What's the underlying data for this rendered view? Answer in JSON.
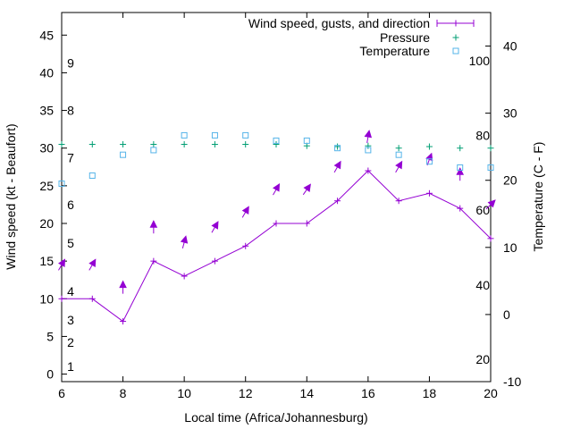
{
  "chart_data": {
    "type": "line",
    "title": "",
    "xlabel": "Local time (Africa/Johannesburg)",
    "ylabel": "Wind speed (kt - Beaufort)",
    "y2label": "Temperature (C - F)",
    "xlim": [
      6,
      20
    ],
    "ylim": [
      -1,
      48
    ],
    "y2lim": [
      -10,
      45
    ],
    "x_ticks": [
      6,
      8,
      10,
      12,
      14,
      16,
      18,
      20
    ],
    "y_ticks": [
      0,
      5,
      10,
      15,
      20,
      25,
      30,
      35,
      40,
      45
    ],
    "y2_ticks": [
      -10,
      0,
      10,
      20,
      30,
      40
    ],
    "beaufort_labels": [
      {
        "text": "1",
        "y": 1
      },
      {
        "text": "2",
        "y": 4.2
      },
      {
        "text": "3",
        "y": 7.2
      },
      {
        "text": "4",
        "y": 11
      },
      {
        "text": "5",
        "y": 17.4
      },
      {
        "text": "6",
        "y": 22.5
      },
      {
        "text": "7",
        "y": 28.7
      },
      {
        "text": "8",
        "y": 35
      },
      {
        "text": "9",
        "y": 41.3
      }
    ],
    "fahrenheit_labels": [
      {
        "text": "20",
        "y2": -6.7
      },
      {
        "text": "40",
        "y2": 4.4
      },
      {
        "text": "60",
        "y2": 15.6
      },
      {
        "text": "80",
        "y2": 26.7
      },
      {
        "text": "100",
        "y2": 37.8
      }
    ],
    "legend": [
      {
        "label": "Wind speed, gusts, and direction",
        "marker": "line-plus",
        "color": "#9400d3"
      },
      {
        "label": "Pressure",
        "marker": "plus",
        "color": "#009e73"
      },
      {
        "label": "Temperature",
        "marker": "square",
        "color": "#56b4e9"
      }
    ],
    "series": [
      {
        "name": "Wind speed, gusts, and direction",
        "color": "#9400d3",
        "x": [
          6,
          7,
          8,
          9,
          10,
          11,
          12,
          13,
          14,
          15,
          16,
          17,
          18,
          19,
          20
        ],
        "values": [
          10,
          10,
          7,
          15,
          13,
          15,
          17,
          20,
          20,
          23,
          27,
          23,
          24,
          22,
          18
        ]
      },
      {
        "name": "Gust arrows",
        "color": "#9400d3",
        "x": [
          6,
          7,
          8,
          9,
          10,
          11,
          12,
          13,
          14,
          15,
          16,
          17,
          18,
          19,
          20
        ],
        "values": [
          14.5,
          14.5,
          11.5,
          19.5,
          17.5,
          19.5,
          21.5,
          24.5,
          24.5,
          27.5,
          31.5,
          27.5,
          28.5,
          26.5,
          22.5
        ]
      },
      {
        "name": "Pressure",
        "color": "#009e73",
        "x": [
          6,
          7,
          8,
          9,
          10,
          11,
          12,
          13,
          14,
          15,
          16,
          17,
          18,
          19,
          20
        ],
        "values": [
          30.5,
          30.5,
          30.5,
          30.5,
          30.5,
          30.5,
          30.5,
          30.5,
          30.3,
          30.2,
          30.3,
          30.0,
          30.2,
          30.0,
          30.0
        ]
      },
      {
        "name": "Temperature",
        "color": "#56b4e9",
        "x": [
          6,
          7,
          8,
          9,
          10,
          11,
          12,
          13,
          14,
          15,
          16,
          17,
          18,
          19,
          20
        ],
        "values": [
          19.5,
          20.7,
          23.8,
          24.5,
          26.7,
          26.7,
          26.7,
          25.9,
          25.9,
          24.8,
          24.5,
          23.8,
          22.8,
          21.9,
          21.9
        ]
      }
    ]
  }
}
